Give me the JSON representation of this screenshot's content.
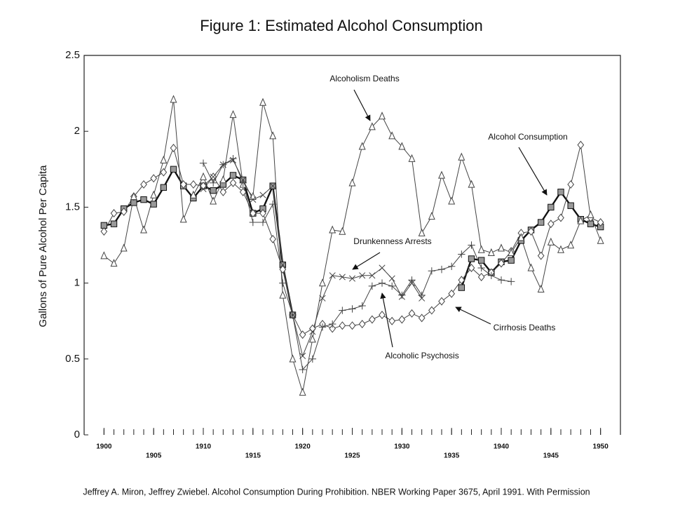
{
  "chart_data": {
    "type": "line",
    "title": "Figure 1: Estimated Alcohol Consumption",
    "y_label": "Gallons of Pure Alcohol Per Capita",
    "caption": "Jeffrey A. Miron, Jeffrey Zwiebel.  Alcohol Consumption During Prohibition.  NBER Working Paper 3675, April 1991.  With Permission",
    "x": [
      1900,
      1901,
      1902,
      1903,
      1904,
      1905,
      1906,
      1907,
      1908,
      1909,
      1910,
      1911,
      1912,
      1913,
      1914,
      1915,
      1916,
      1917,
      1918,
      1919,
      1920,
      1921,
      1922,
      1923,
      1924,
      1925,
      1926,
      1927,
      1928,
      1929,
      1930,
      1931,
      1932,
      1933,
      1934,
      1935,
      1936,
      1937,
      1938,
      1939,
      1940,
      1941,
      1942,
      1943,
      1944,
      1945,
      1946,
      1947,
      1948,
      1949,
      1950
    ],
    "xlim": [
      1898,
      1952
    ],
    "xticks": [
      1900,
      1905,
      1910,
      1915,
      1920,
      1925,
      1930,
      1935,
      1940,
      1945,
      1950
    ],
    "ylim": [
      0,
      2.5
    ],
    "yticks": [
      0,
      0.5,
      1,
      1.5,
      2,
      2.5
    ],
    "series": [
      {
        "name": "Alcohol Consumption",
        "color": "#111111",
        "marker": "square",
        "values": [
          1.38,
          1.39,
          1.49,
          1.53,
          1.55,
          1.52,
          1.63,
          1.75,
          1.64,
          1.56,
          1.64,
          1.61,
          1.65,
          1.71,
          1.68,
          1.46,
          1.49,
          1.64,
          1.12,
          0.79,
          null,
          null,
          null,
          null,
          null,
          null,
          null,
          null,
          null,
          null,
          null,
          null,
          null,
          null,
          null,
          null,
          0.97,
          1.16,
          1.15,
          1.07,
          1.14,
          1.15,
          1.28,
          1.35,
          1.4,
          1.5,
          1.6,
          1.51,
          1.42,
          1.39,
          1.37
        ]
      },
      {
        "name": "Cirrhosis Deaths",
        "color": "#444444",
        "marker": "diamond",
        "values": [
          1.34,
          1.46,
          1.47,
          1.57,
          1.65,
          1.69,
          1.73,
          1.89,
          1.65,
          1.65,
          1.64,
          1.7,
          1.6,
          1.66,
          1.6,
          1.46,
          1.46,
          1.29,
          1.09,
          0.79,
          0.66,
          0.7,
          0.73,
          0.7,
          0.72,
          0.72,
          0.73,
          0.76,
          0.79,
          0.75,
          0.76,
          0.8,
          0.77,
          0.82,
          0.88,
          0.93,
          1.02,
          1.1,
          1.04,
          1.07,
          1.13,
          1.21,
          1.33,
          1.34,
          1.18,
          1.39,
          1.43,
          1.65,
          1.91,
          1.43,
          1.4
        ]
      },
      {
        "name": "Alcoholism Deaths",
        "color": "#444444",
        "marker": "triangle",
        "values": [
          1.18,
          1.13,
          1.23,
          1.57,
          1.35,
          1.58,
          1.81,
          2.21,
          1.42,
          1.58,
          1.7,
          1.54,
          1.68,
          2.11,
          1.65,
          1.57,
          2.19,
          1.97,
          0.92,
          0.5,
          0.28,
          0.63,
          1.0,
          1.35,
          1.34,
          1.66,
          1.9,
          2.03,
          2.1,
          1.97,
          1.9,
          1.82,
          1.33,
          1.44,
          1.71,
          1.54,
          1.83,
          1.65,
          1.22,
          1.2,
          1.23,
          1.2,
          1.3,
          1.1,
          0.96,
          1.27,
          1.22,
          1.25,
          1.41,
          1.45,
          1.28
        ]
      },
      {
        "name": "Drunkenness Arrests",
        "color": "#444444",
        "marker": "x",
        "values": [
          null,
          null,
          null,
          null,
          null,
          null,
          null,
          null,
          null,
          null,
          1.62,
          1.7,
          1.78,
          1.81,
          1.68,
          1.55,
          1.58,
          1.64,
          1.12,
          0.79,
          0.52,
          0.68,
          0.9,
          1.05,
          1.04,
          1.03,
          1.05,
          1.05,
          1.1,
          1.03,
          0.91,
          1.0,
          0.9,
          null,
          null,
          null,
          null,
          null,
          null,
          null,
          null,
          null,
          null,
          null,
          null,
          null,
          null,
          null,
          null,
          null,
          null
        ]
      },
      {
        "name": "Alcoholic Psychosis",
        "color": "#444444",
        "marker": "plus",
        "values": [
          null,
          null,
          null,
          null,
          null,
          null,
          null,
          null,
          null,
          null,
          1.79,
          1.66,
          1.78,
          1.82,
          1.66,
          1.4,
          1.4,
          1.52,
          1.0,
          0.79,
          0.43,
          0.5,
          0.71,
          0.73,
          0.82,
          0.83,
          0.85,
          0.98,
          1.0,
          0.98,
          0.92,
          1.02,
          0.92,
          1.08,
          1.09,
          1.11,
          1.19,
          1.25,
          1.1,
          1.05,
          1.02,
          1.01,
          null,
          null,
          null,
          null,
          null,
          null,
          null,
          null,
          null
        ]
      }
    ]
  }
}
